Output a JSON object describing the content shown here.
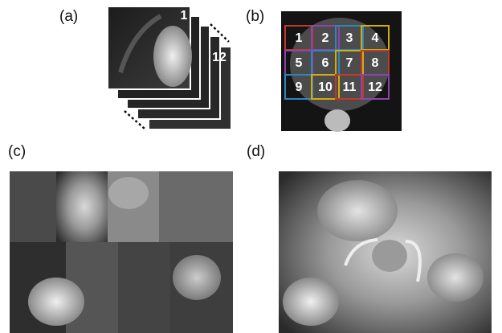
{
  "panels": {
    "a": {
      "label": "(a)",
      "front_number": "1",
      "back_number": "12"
    },
    "b": {
      "label": "(b)",
      "tiles": [
        "1",
        "2",
        "3",
        "4",
        "5",
        "6",
        "7",
        "8",
        "9",
        "10",
        "11",
        "12"
      ]
    },
    "c": {
      "label": "(c)"
    },
    "d": {
      "label": "(d)"
    }
  }
}
